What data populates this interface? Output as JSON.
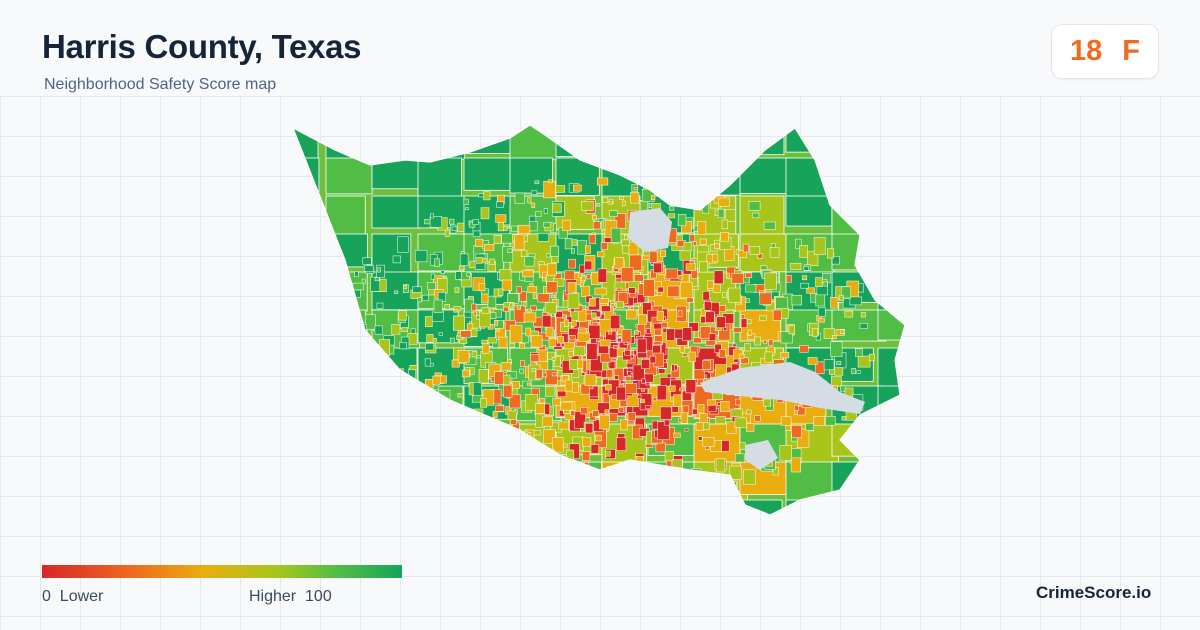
{
  "header": {
    "title": "Harris County, Texas",
    "subtitle": "Neighborhood Safety Score map"
  },
  "score": {
    "value": "18",
    "grade": "F",
    "color": "#ef6b1f"
  },
  "legend": {
    "min_value": "0",
    "min_label": "Lower",
    "max_label": "Higher",
    "max_value": "100",
    "colors": [
      "#d62828",
      "#ee6a20",
      "#eaad10",
      "#a8c51c",
      "#52bd45",
      "#17a45a"
    ]
  },
  "brand": "CrimeScore.io",
  "map": {
    "region": "Harris County",
    "water_color": "#d5dce4",
    "boundary_color": "#ffffff"
  }
}
